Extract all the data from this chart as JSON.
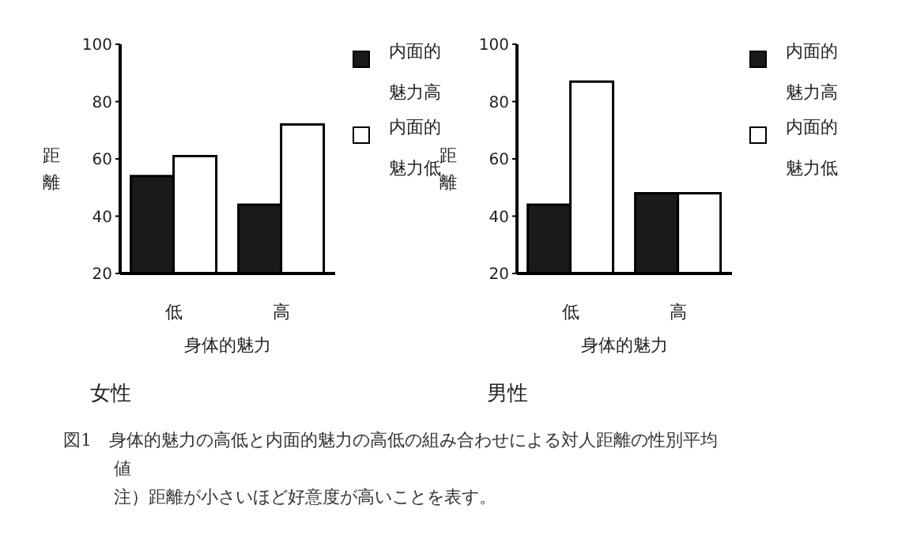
{
  "chart_data": [
    {
      "type": "bar",
      "title": "女性",
      "xlabel": "身体的魅力",
      "ylabel": "距離",
      "categories": [
        "低",
        "高"
      ],
      "ylim": [
        20,
        100
      ],
      "yticks": [
        20,
        40,
        60,
        80,
        100
      ],
      "legend": "right",
      "series": [
        {
          "name": "内面的魅力高",
          "color": "#1a1a1a",
          "values": [
            54,
            44
          ]
        },
        {
          "name": "内面的魅力低",
          "color": "#ffffff",
          "values": [
            61,
            72
          ]
        }
      ],
      "annotations": [
        "図1　身体的魅力の高低と内面的魅力の高低の組み合わせによる対人距離の性別平均値",
        "注）距離が小さいほど好意度が高いことを表す。"
      ]
    },
    {
      "type": "bar",
      "title": "男性",
      "xlabel": "身体的魅力",
      "ylabel": "距離",
      "categories": [
        "低",
        "高"
      ],
      "ylim": [
        20,
        100
      ],
      "yticks": [
        20,
        40,
        60,
        80,
        100
      ],
      "legend": "right",
      "series": [
        {
          "name": "内面的魅力高",
          "color": "#1a1a1a",
          "values": [
            44,
            48
          ]
        },
        {
          "name": "内面的魅力低",
          "color": "#ffffff",
          "values": [
            87,
            48
          ]
        }
      ]
    }
  ]
}
